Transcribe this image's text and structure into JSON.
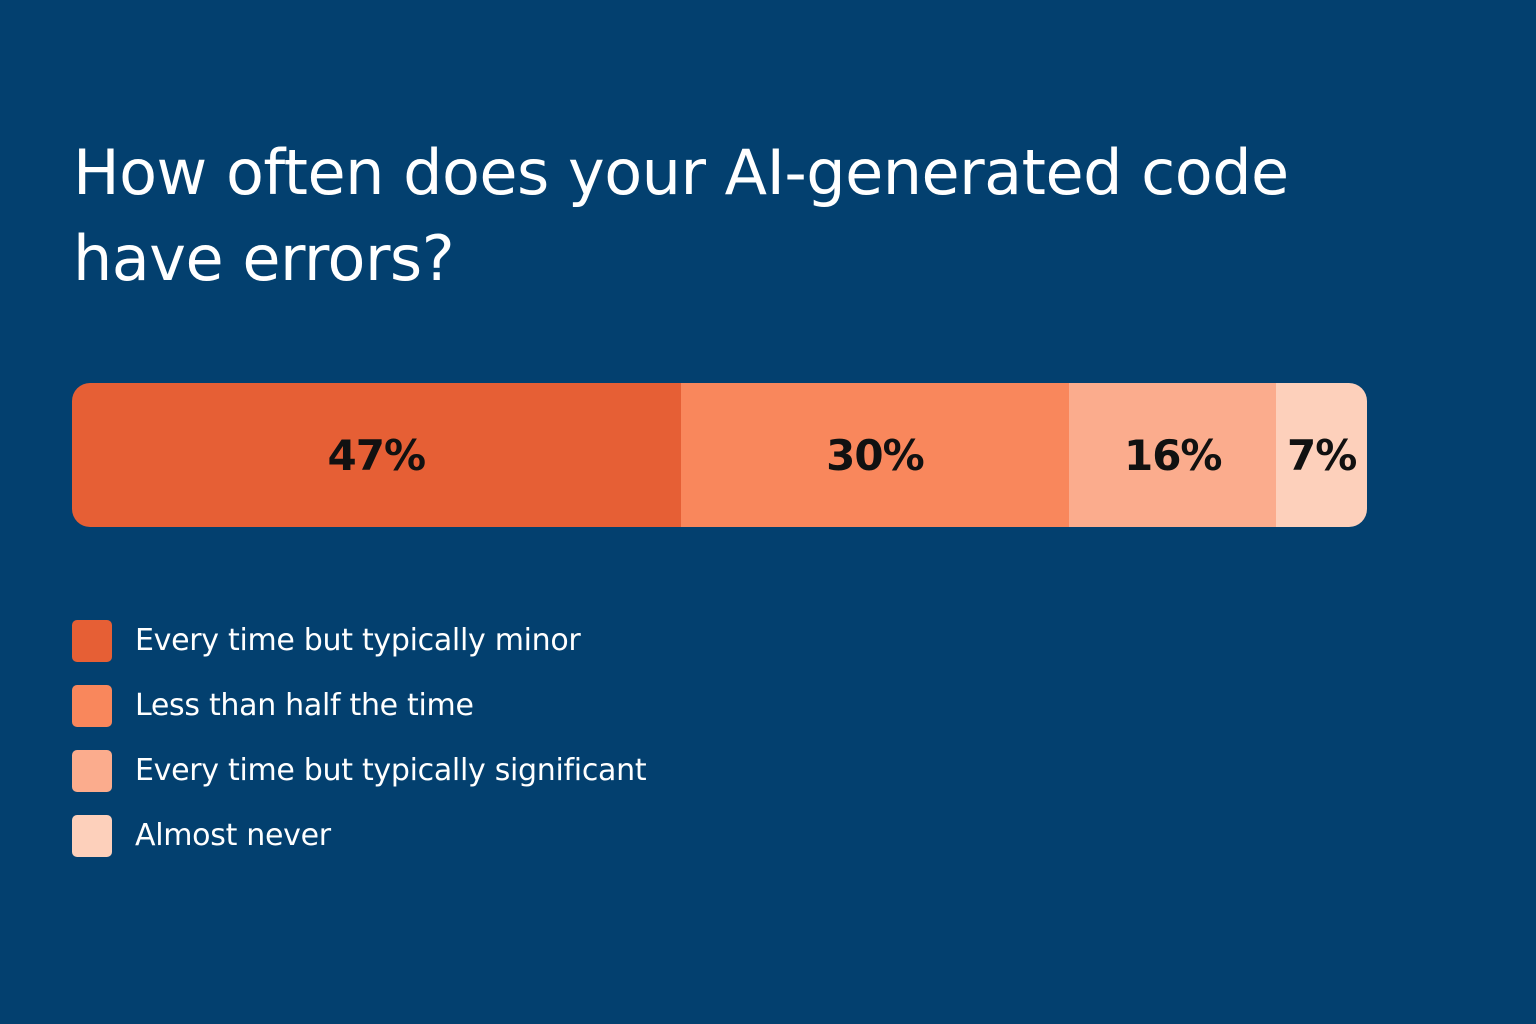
{
  "title": "How often does your AI-generated code have errors?",
  "colors": {
    "background": "#03406f",
    "series": [
      "#e65f35",
      "#f9875c",
      "#fbac8d",
      "#fdd0bb"
    ]
  },
  "chart_data": {
    "type": "bar",
    "orientation": "horizontal-stacked-100",
    "title": "How often does your AI-generated code have errors?",
    "series": [
      {
        "name": "Every time but typically minor",
        "value": 47,
        "label": "47%"
      },
      {
        "name": "Less than half the time",
        "value": 30,
        "label": "30%"
      },
      {
        "name": "Every time but typically significant",
        "value": 16,
        "label": "16%"
      },
      {
        "name": "Almost never",
        "value": 7,
        "label": "7%"
      }
    ],
    "legend_position": "bottom-left",
    "grid": false
  }
}
